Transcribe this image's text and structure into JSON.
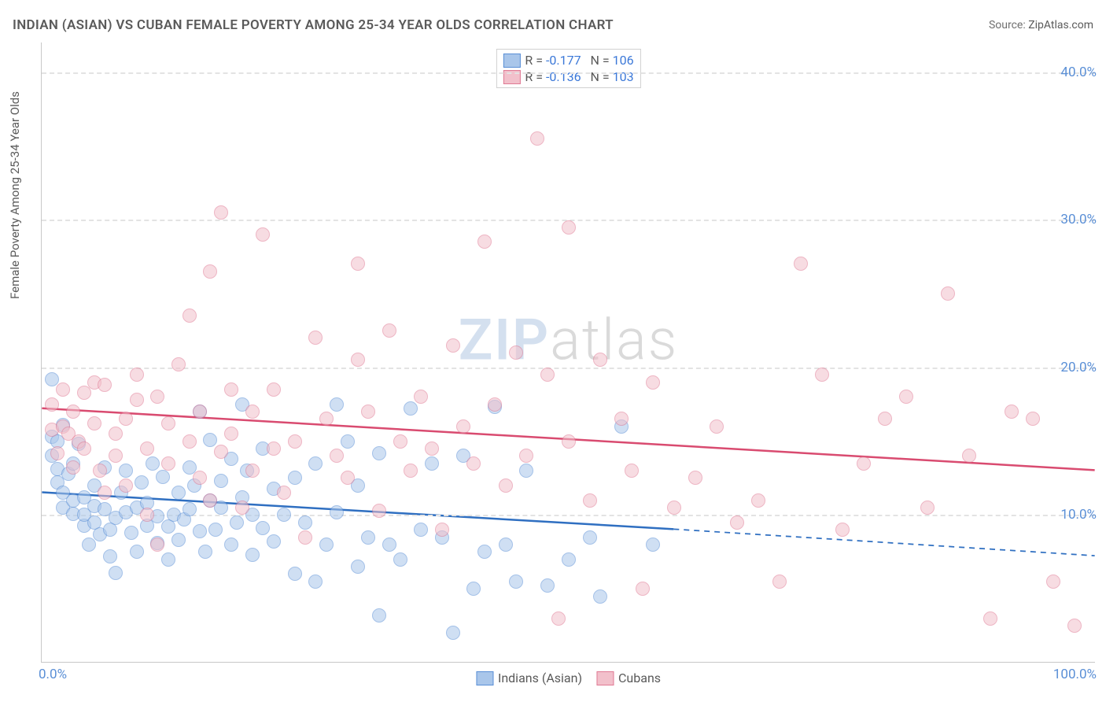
{
  "title": "INDIAN (ASIAN) VS CUBAN FEMALE POVERTY AMONG 25-34 YEAR OLDS CORRELATION CHART",
  "source_label": "Source:",
  "source_value": "ZipAtlas.com",
  "ylabel": "Female Poverty Among 25-34 Year Olds",
  "watermark_a": "ZIP",
  "watermark_b": "atlas",
  "chart": {
    "type": "scatter",
    "xlim": [
      0,
      100
    ],
    "ylim": [
      0,
      42
    ],
    "y_ticks": [
      10,
      20,
      30,
      40
    ],
    "y_tick_labels": [
      "10.0%",
      "20.0%",
      "30.0%",
      "40.0%"
    ],
    "x_ticks": [
      0,
      100
    ],
    "x_tick_labels": [
      "0.0%",
      "100.0%"
    ],
    "background_color": "#ffffff",
    "grid_color": "#e3e3e3",
    "grid_dash": "6,5",
    "axis_color": "#c8c8c8",
    "tick_label_color": "#5a8fd6",
    "marker_radius": 9,
    "marker_opacity": 0.55,
    "series": [
      {
        "name": "Indians (Asian)",
        "legend_label": "Indians (Asian)",
        "fill": "#a9c6ea",
        "stroke": "#5a8fd6",
        "R": "-0.177",
        "N": "106",
        "trend": {
          "x1": 0,
          "y1": 11.5,
          "x2_solid": 60,
          "y2_solid": 9.0,
          "x2": 100,
          "y2": 7.2,
          "color": "#2f6fc1",
          "width": 2.5
        },
        "points": [
          [
            1,
            19.2
          ],
          [
            1,
            15.3
          ],
          [
            1,
            14.0
          ],
          [
            1.5,
            15.0
          ],
          [
            1.5,
            13.1
          ],
          [
            1.5,
            12.2
          ],
          [
            2,
            16.1
          ],
          [
            2,
            11.5
          ],
          [
            2,
            10.5
          ],
          [
            2.5,
            12.8
          ],
          [
            3,
            10.1
          ],
          [
            3,
            13.5
          ],
          [
            3,
            11.0
          ],
          [
            3.5,
            14.8
          ],
          [
            4,
            9.3
          ],
          [
            4,
            11.2
          ],
          [
            4,
            10.0
          ],
          [
            4.5,
            8.0
          ],
          [
            5,
            10.6
          ],
          [
            5,
            12.0
          ],
          [
            5,
            9.5
          ],
          [
            5.5,
            8.7
          ],
          [
            6,
            13.2
          ],
          [
            6,
            10.4
          ],
          [
            6.5,
            9.0
          ],
          [
            6.5,
            7.2
          ],
          [
            7,
            6.1
          ],
          [
            7,
            9.8
          ],
          [
            7.5,
            11.5
          ],
          [
            8,
            10.2
          ],
          [
            8,
            13.0
          ],
          [
            8.5,
            8.8
          ],
          [
            9,
            10.5
          ],
          [
            9,
            7.5
          ],
          [
            9.5,
            12.2
          ],
          [
            10,
            9.3
          ],
          [
            10,
            10.8
          ],
          [
            10.5,
            13.5
          ],
          [
            11,
            8.1
          ],
          [
            11,
            9.9
          ],
          [
            11.5,
            12.6
          ],
          [
            12,
            7.0
          ],
          [
            12,
            9.2
          ],
          [
            12.5,
            10.0
          ],
          [
            13,
            11.5
          ],
          [
            13,
            8.3
          ],
          [
            13.5,
            9.7
          ],
          [
            14,
            10.4
          ],
          [
            14,
            13.2
          ],
          [
            14.5,
            12.0
          ],
          [
            15,
            8.9
          ],
          [
            15,
            17.0
          ],
          [
            15.5,
            7.5
          ],
          [
            16,
            11.0
          ],
          [
            16,
            15.1
          ],
          [
            16.5,
            9.0
          ],
          [
            17,
            12.3
          ],
          [
            17,
            10.5
          ],
          [
            18,
            8.0
          ],
          [
            18,
            13.8
          ],
          [
            18.5,
            9.5
          ],
          [
            19,
            17.5
          ],
          [
            19,
            11.2
          ],
          [
            19.5,
            13.0
          ],
          [
            20,
            7.3
          ],
          [
            20,
            10.0
          ],
          [
            21,
            9.1
          ],
          [
            21,
            14.5
          ],
          [
            22,
            8.2
          ],
          [
            22,
            11.8
          ],
          [
            23,
            10.0
          ],
          [
            24,
            12.5
          ],
          [
            24,
            6.0
          ],
          [
            25,
            9.5
          ],
          [
            26,
            5.5
          ],
          [
            26,
            13.5
          ],
          [
            27,
            8.0
          ],
          [
            28,
            17.5
          ],
          [
            28,
            10.2
          ],
          [
            29,
            15.0
          ],
          [
            30,
            12.0
          ],
          [
            30,
            6.5
          ],
          [
            31,
            8.5
          ],
          [
            32,
            3.2
          ],
          [
            32,
            14.2
          ],
          [
            33,
            8.0
          ],
          [
            34,
            7.0
          ],
          [
            35,
            17.2
          ],
          [
            36,
            9.0
          ],
          [
            37,
            13.5
          ],
          [
            38,
            8.5
          ],
          [
            39,
            2.0
          ],
          [
            40,
            14.0
          ],
          [
            41,
            5.0
          ],
          [
            42,
            7.5
          ],
          [
            43,
            17.3
          ],
          [
            44,
            8.0
          ],
          [
            45,
            5.5
          ],
          [
            46,
            13.0
          ],
          [
            48,
            5.2
          ],
          [
            50,
            7.0
          ],
          [
            52,
            8.5
          ],
          [
            53,
            4.5
          ],
          [
            55,
            16.0
          ],
          [
            58,
            8.0
          ]
        ]
      },
      {
        "name": "Cubans",
        "legend_label": "Cubans",
        "fill": "#f2c0cb",
        "stroke": "#e07a94",
        "R": "-0.136",
        "N": "103",
        "trend": {
          "x1": 0,
          "y1": 17.2,
          "x2_solid": 100,
          "y2_solid": 13.0,
          "x2": 100,
          "y2": 13.0,
          "color": "#d94b70",
          "width": 2.5
        },
        "points": [
          [
            1,
            17.5
          ],
          [
            1,
            15.8
          ],
          [
            1.5,
            14.2
          ],
          [
            2,
            18.5
          ],
          [
            2,
            16.0
          ],
          [
            2.5,
            15.5
          ],
          [
            3,
            17.0
          ],
          [
            3,
            13.2
          ],
          [
            3.5,
            15.0
          ],
          [
            4,
            18.3
          ],
          [
            4,
            14.5
          ],
          [
            5,
            16.2
          ],
          [
            5,
            19.0
          ],
          [
            5.5,
            13.0
          ],
          [
            6,
            11.5
          ],
          [
            6,
            18.8
          ],
          [
            7,
            15.5
          ],
          [
            7,
            14.0
          ],
          [
            8,
            16.5
          ],
          [
            8,
            12.0
          ],
          [
            9,
            17.8
          ],
          [
            9,
            19.5
          ],
          [
            10,
            14.5
          ],
          [
            10,
            10.0
          ],
          [
            11,
            18.0
          ],
          [
            11,
            8.0
          ],
          [
            12,
            16.2
          ],
          [
            12,
            13.5
          ],
          [
            13,
            20.2
          ],
          [
            14,
            15.0
          ],
          [
            14,
            23.5
          ],
          [
            15,
            12.5
          ],
          [
            15,
            17.0
          ],
          [
            16,
            11.0
          ],
          [
            16,
            26.5
          ],
          [
            17,
            30.5
          ],
          [
            17,
            14.3
          ],
          [
            18,
            18.5
          ],
          [
            18,
            15.5
          ],
          [
            19,
            10.5
          ],
          [
            20,
            13.0
          ],
          [
            20,
            17.0
          ],
          [
            21,
            29.0
          ],
          [
            22,
            14.5
          ],
          [
            22,
            18.5
          ],
          [
            23,
            11.5
          ],
          [
            24,
            15.0
          ],
          [
            25,
            8.5
          ],
          [
            26,
            22.0
          ],
          [
            27,
            16.5
          ],
          [
            28,
            14.0
          ],
          [
            29,
            12.5
          ],
          [
            30,
            20.5
          ],
          [
            30,
            27.0
          ],
          [
            31,
            17.0
          ],
          [
            32,
            10.3
          ],
          [
            33,
            22.5
          ],
          [
            34,
            15.0
          ],
          [
            35,
            13.0
          ],
          [
            36,
            18.0
          ],
          [
            37,
            14.5
          ],
          [
            38,
            9.0
          ],
          [
            39,
            21.5
          ],
          [
            40,
            16.0
          ],
          [
            41,
            13.5
          ],
          [
            42,
            28.5
          ],
          [
            43,
            17.5
          ],
          [
            44,
            12.0
          ],
          [
            45,
            21.0
          ],
          [
            46,
            14.0
          ],
          [
            47,
            35.5
          ],
          [
            48,
            19.5
          ],
          [
            49,
            3.0
          ],
          [
            50,
            29.5
          ],
          [
            50,
            15.0
          ],
          [
            52,
            11.0
          ],
          [
            53,
            20.5
          ],
          [
            55,
            16.5
          ],
          [
            56,
            13.0
          ],
          [
            57,
            5.0
          ],
          [
            58,
            19.0
          ],
          [
            60,
            10.5
          ],
          [
            62,
            12.5
          ],
          [
            64,
            16.0
          ],
          [
            66,
            9.5
          ],
          [
            68,
            11.0
          ],
          [
            70,
            5.5
          ],
          [
            72,
            27.0
          ],
          [
            74,
            19.5
          ],
          [
            76,
            9.0
          ],
          [
            78,
            13.5
          ],
          [
            80,
            16.5
          ],
          [
            82,
            18.0
          ],
          [
            84,
            10.5
          ],
          [
            86,
            25.0
          ],
          [
            88,
            14.0
          ],
          [
            90,
            3.0
          ],
          [
            92,
            17.0
          ],
          [
            94,
            16.5
          ],
          [
            96,
            5.5
          ],
          [
            98,
            2.5
          ]
        ]
      }
    ],
    "legend_top": {
      "R_label": "R =",
      "N_label": "N ="
    },
    "legend_bottom_labels": [
      "Indians (Asian)",
      "Cubans"
    ]
  }
}
